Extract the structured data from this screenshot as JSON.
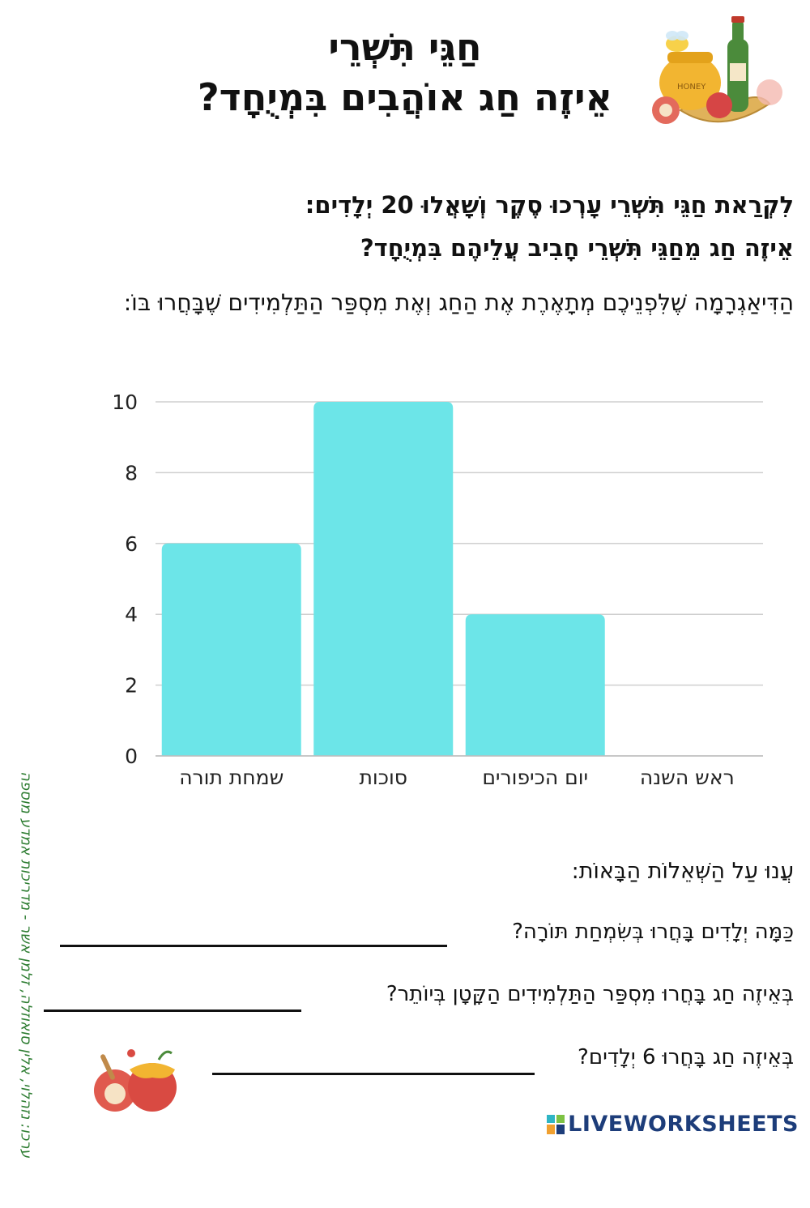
{
  "header": {
    "title_line1": "חַגֵּי תִּשְׁרֵי",
    "title_line2": "אֵיזֶה חַג אוֹהֲבִים בִּמְיֻחָד?"
  },
  "intro": {
    "line1": "לִקְרַאת חַגֵּי תִּשְׁרֵי עָרְכוּ סֶקֶר וְשָׁאֲלוּ 20 יְלָדִים:",
    "line2": "אֵיזֶה חַג מֵחַגֵּי תִּשְׁרֵי חָבִיב עֲלֵיהֶם בִּמְיֻחָד?",
    "description": "הַדִּיאַגְרָמָה שֶׁלִּפְנֵיכֶם מְתָאֶרֶת אֶת הַחַג וְאֶת מִסְפַּר הַתַּלְמִידִים שֶׁבָּחֲרוּ בּוֹ:"
  },
  "chart_data": {
    "type": "bar",
    "categories": [
      "ראש השנה",
      "יום הכיפורים",
      "סוכות",
      "שמחת תורה"
    ],
    "values": [
      0,
      4,
      10,
      6
    ],
    "title": "",
    "xlabel": "",
    "ylabel": "",
    "ylim": [
      0,
      10
    ],
    "yticks": [
      0,
      2,
      4,
      6,
      8,
      10
    ],
    "bar_color": "#6ce5e8",
    "grid": true
  },
  "questions": {
    "title": "עֲנוּ עַל הַשְּׁאֵלוֹת הַבָּאוֹת:",
    "q1": "כַּמָּה יְלָדִים בָּחֲרוּ בְּשִׂמְחַת תּוֹרָה?",
    "q2": "בְּאֵיזֶה חַג בָּחֲרוּ מִסְפַּר הַתַּלְמִידִים הַקָּטָן בְּיוֹתֵר?",
    "q3": "בְּאֵיזֶה חַג בָּחֲרוּ 6 יְלָדִים?"
  },
  "credit": "ערכו: נזהלוי, אלין סואוזלה, זלמן אשר - מדריכות אמדע מוספה",
  "brand": "LIVEWORKSHEETS",
  "illustration": {
    "honey_label": "HONEY"
  },
  "colors": {
    "bar": "#6ce5e8",
    "credit": "#2e7d32",
    "brand": "#1d3d7a"
  }
}
